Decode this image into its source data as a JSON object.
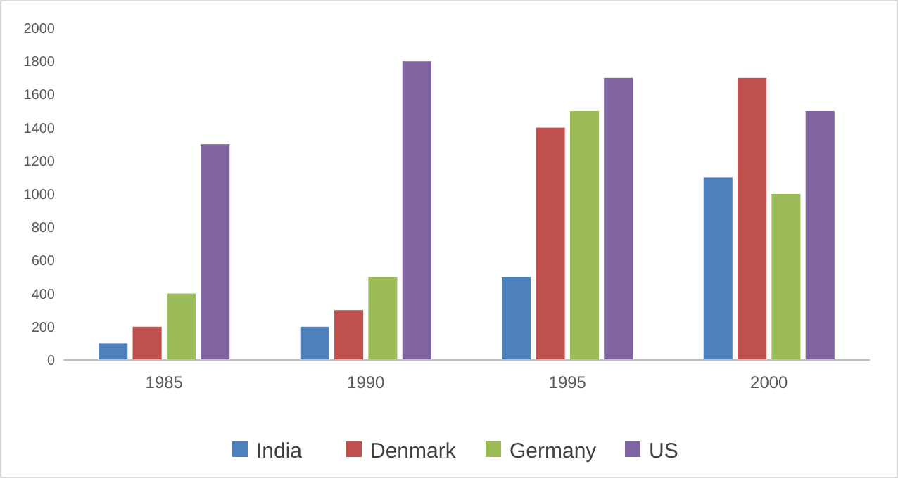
{
  "chart_data": {
    "type": "bar",
    "categories": [
      "1985",
      "1990",
      "1995",
      "2000"
    ],
    "series": [
      {
        "name": "India",
        "color": "#4f81bd",
        "values": [
          100,
          200,
          500,
          1100
        ]
      },
      {
        "name": "Denmark",
        "color": "#c0504d",
        "values": [
          200,
          300,
          1400,
          1700
        ]
      },
      {
        "name": "Germany",
        "color": "#9bbb59",
        "values": [
          400,
          500,
          1500,
          1000
        ]
      },
      {
        "name": "US",
        "color": "#8064a2",
        "values": [
          1300,
          1800,
          1700,
          1500
        ]
      }
    ],
    "ylim": [
      0,
      2000
    ],
    "yticks": [
      0,
      200,
      400,
      600,
      800,
      1000,
      1200,
      1400,
      1600,
      1800,
      2000
    ],
    "grid": false,
    "legend": "bottom"
  }
}
